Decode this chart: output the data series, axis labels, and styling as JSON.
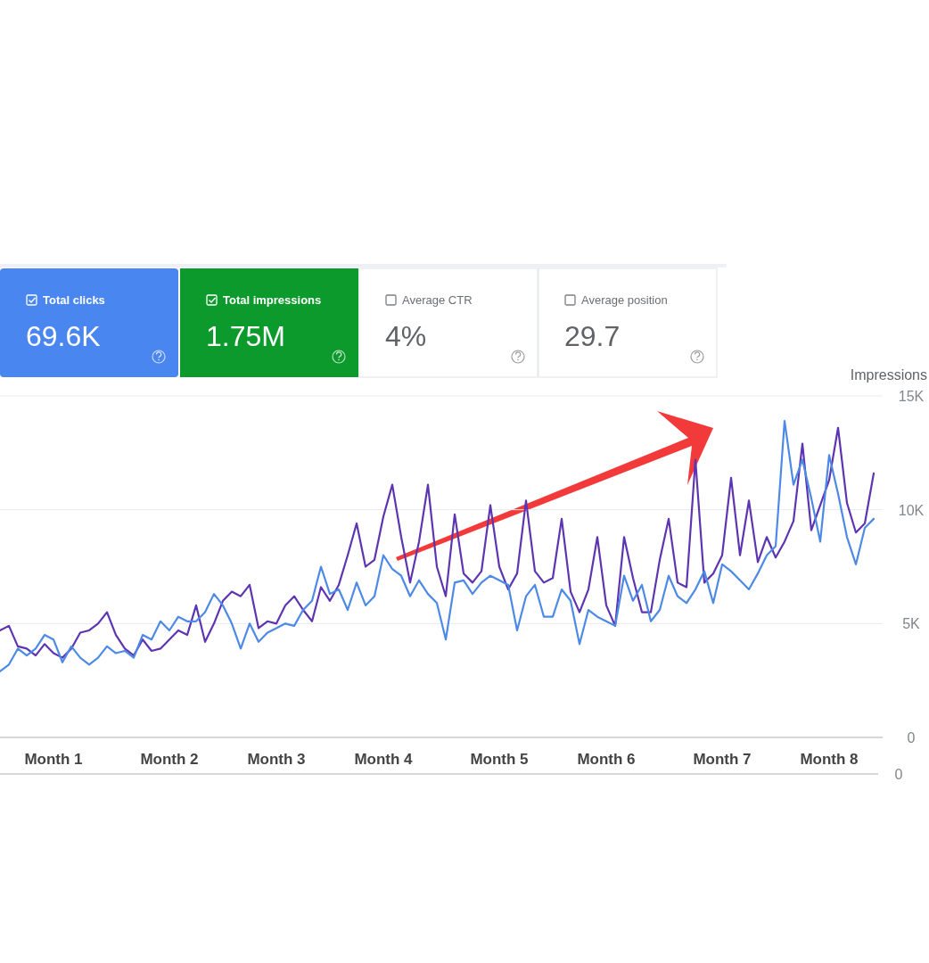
{
  "chart_data": [
    {
      "type": "other",
      "annotations": [
        "Total clicks",
        "69.6K",
        "Total impressions",
        "1.75M",
        "Average CTR",
        "4%",
        "Average position",
        "29.7"
      ],
      "colors": [
        "#4a86ef",
        "#0c9a2c",
        null,
        null
      ]
    },
    {
      "type": "line",
      "ylabel": "Impressions",
      "grid": "y",
      "line_style": "solid",
      "marker": "none",
      "categories": [
        null,
        null,
        null,
        null,
        null,
        null,
        "Month 1",
        null,
        null,
        null,
        null,
        null,
        null,
        null,
        null,
        null,
        null,
        null,
        null,
        "Month 2",
        null,
        null,
        null,
        null,
        null,
        null,
        null,
        null,
        null,
        null,
        null,
        "Month 3",
        null,
        null,
        null,
        null,
        null,
        null,
        null,
        null,
        null,
        null,
        null,
        "Month 4",
        null,
        null,
        null,
        null,
        null,
        null,
        null,
        null,
        null,
        null,
        null,
        null,
        "Month 5",
        null,
        null,
        null,
        null,
        null,
        null,
        null,
        null,
        null,
        null,
        null,
        "Month 6",
        null,
        null,
        null,
        null,
        null,
        null,
        null,
        null,
        null,
        null,
        null,
        null,
        "Month 7",
        null,
        null,
        null,
        null,
        null,
        null,
        null,
        null,
        null,
        null,
        null,
        "Month 8",
        null,
        null,
        null,
        null,
        null
      ],
      "ylim": [
        0,
        15
      ],
      "yticks": [
        0,
        {
          "value": 5,
          "label": "5K"
        },
        {
          "value": 10,
          "label": "10K"
        },
        {
          "value": 15,
          "label": "15K"
        }
      ],
      "annotations": [
        "0"
      ],
      "series": [
        {
          "color": "#5e35b1",
          "values": [
            4.7,
            4.9,
            4.0,
            3.9,
            3.6,
            4.1,
            3.7,
            3.5,
            3.9,
            4.6,
            4.7,
            5.0,
            5.5,
            4.5,
            3.9,
            3.6,
            4.3,
            3.8,
            3.9,
            4.3,
            4.7,
            4.5,
            5.8,
            4.2,
            5.0,
            6.0,
            6.4,
            6.2,
            6.7,
            4.8,
            5.1,
            5.0,
            5.8,
            6.2,
            5.6,
            5.1,
            6.6,
            6.0,
            6.7,
            8.0,
            9.4,
            7.5,
            7.8,
            9.7,
            11.1,
            8.8,
            6.8,
            8.6,
            11.1,
            7.5,
            6.2,
            9.8,
            7.2,
            6.8,
            7.3,
            10.2,
            7.5,
            6.5,
            7.2,
            10.4,
            7.3,
            6.8,
            7.0,
            9.6,
            6.4,
            5.5,
            6.5,
            8.8,
            5.8,
            4.9,
            8.8,
            7.0,
            5.5,
            5.5,
            7.8,
            9.6,
            6.8,
            6.6,
            12.2,
            6.8,
            7.2,
            8.0,
            11.4,
            8.0,
            10.4,
            7.7,
            8.8,
            7.9,
            8.6,
            9.5,
            12.9,
            9.1,
            10.2,
            11.3,
            13.6,
            10.3,
            9.0,
            9.4,
            11.6
          ]
        },
        {
          "color": "#4d8ae6",
          "values": [
            2.9,
            3.2,
            3.9,
            3.6,
            3.9,
            4.5,
            4.3,
            3.3,
            4.0,
            3.5,
            3.2,
            3.5,
            4.0,
            3.7,
            3.8,
            3.5,
            4.5,
            4.3,
            5.1,
            4.7,
            5.3,
            5.1,
            5.1,
            5.5,
            6.3,
            5.8,
            5.0,
            3.9,
            5.0,
            4.2,
            4.6,
            4.8,
            5.0,
            4.9,
            5.6,
            6.0,
            7.5,
            6.3,
            6.5,
            5.6,
            6.8,
            5.8,
            6.2,
            8.0,
            7.4,
            7.1,
            6.2,
            6.9,
            6.3,
            5.9,
            4.3,
            6.8,
            6.9,
            6.3,
            6.8,
            7.1,
            6.9,
            6.7,
            4.7,
            6.2,
            6.7,
            5.3,
            5.3,
            6.5,
            6.0,
            4.1,
            5.6,
            5.3,
            5.1,
            4.9,
            7.1,
            6.0,
            6.7,
            5.1,
            5.6,
            7.1,
            6.2,
            5.9,
            6.5,
            7.3,
            5.9,
            7.6,
            7.3,
            6.9,
            6.5,
            7.2,
            8.0,
            8.4,
            13.9,
            11.1,
            12.2,
            10.5,
            8.6,
            12.4,
            10.7,
            8.8,
            7.6,
            9.2,
            9.6
          ]
        }
      ]
    }
  ]
}
